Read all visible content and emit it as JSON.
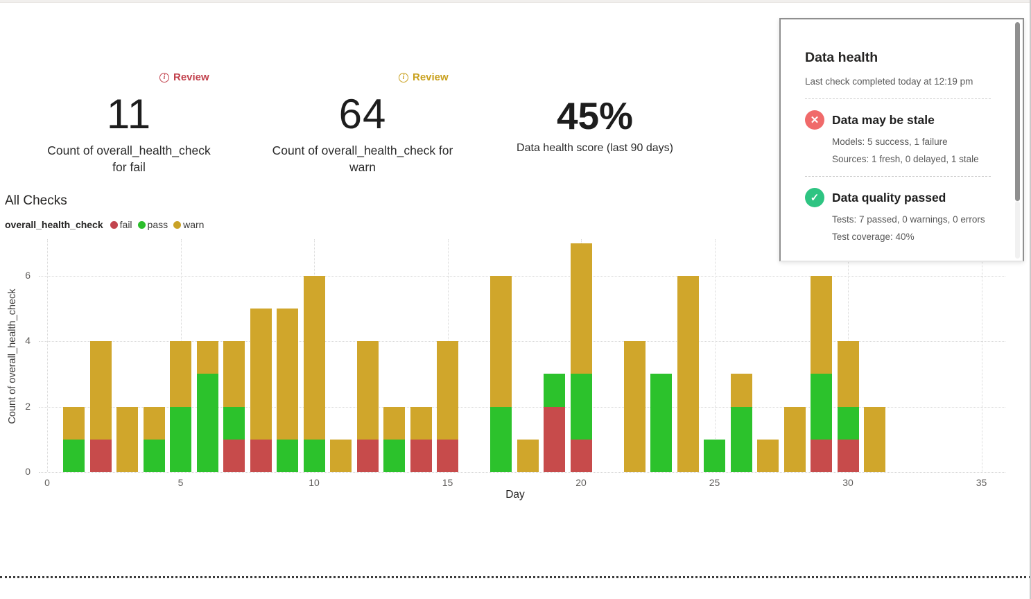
{
  "kpis": [
    {
      "value": "11",
      "label": "Count of overall_health_check for fail",
      "review_label": "Review",
      "review_color": "#c2424d"
    },
    {
      "value": "64",
      "label": "Count of overall_health_check for warn",
      "review_label": "Review",
      "review_color": "#c9a11f"
    },
    {
      "value": "45%",
      "label": "Data health score (last 90 days)"
    }
  ],
  "chart": {
    "title": "All Checks",
    "legend_title": "overall_health_check",
    "legend": [
      {
        "label": "fail",
        "color": "#c2444e"
      },
      {
        "label": "pass",
        "color": "#2bbe2b"
      },
      {
        "label": "warn",
        "color": "#c9a227"
      }
    ]
  },
  "chart_data": {
    "type": "bar",
    "stacked": true,
    "title": "All Checks",
    "xlabel": "Day",
    "ylabel": "Count of overall_health_check",
    "xlim": [
      0,
      35
    ],
    "ylim": [
      0,
      7
    ],
    "x_ticks": [
      0,
      5,
      10,
      15,
      20,
      25,
      30,
      35
    ],
    "y_ticks": [
      0,
      2,
      4,
      6
    ],
    "grid": "dotted",
    "legend_position": "top-left",
    "x": [
      1,
      2,
      3,
      4,
      5,
      6,
      7,
      8,
      9,
      10,
      11,
      12,
      13,
      14,
      15,
      17,
      18,
      19,
      20,
      22,
      23,
      24,
      25,
      26,
      27,
      28,
      29,
      30,
      31
    ],
    "series": [
      {
        "name": "fail",
        "color": "#c74b4b",
        "values": [
          0,
          1,
          0,
          0,
          0,
          0,
          1,
          1,
          0,
          0,
          0,
          1,
          0,
          1,
          1,
          0,
          0,
          2,
          1,
          0,
          0,
          0,
          0,
          0,
          0,
          0,
          1,
          1,
          0
        ]
      },
      {
        "name": "pass",
        "color": "#2cc22c",
        "values": [
          1,
          0,
          0,
          1,
          2,
          3,
          1,
          0,
          1,
          1,
          0,
          0,
          1,
          0,
          0,
          2,
          0,
          1,
          2,
          0,
          3,
          0,
          1,
          2,
          0,
          0,
          2,
          1,
          0
        ]
      },
      {
        "name": "warn",
        "color": "#d0a62b",
        "values": [
          1,
          3,
          2,
          1,
          2,
          1,
          2,
          4,
          4,
          5,
          1,
          3,
          1,
          1,
          3,
          4,
          1,
          0,
          4,
          4,
          0,
          6,
          0,
          1,
          1,
          2,
          3,
          2,
          2
        ]
      }
    ],
    "totals": {
      "fail": 11,
      "pass": 25,
      "warn": 64
    }
  },
  "panel": {
    "title": "Data health",
    "subtitle": "Last check completed today at 12:19 pm",
    "sections": [
      {
        "icon": "x-circle",
        "icon_color": "#f06a6a",
        "title": "Data may be stale",
        "lines": [
          "Models: 5 success, 1 failure",
          "Sources: 1 fresh, 0 delayed, 1 stale"
        ]
      },
      {
        "icon": "check-circle",
        "icon_color": "#2ec482",
        "title": "Data quality passed",
        "lines": [
          "Tests: 7 passed, 0 warnings, 0 errors",
          "Test coverage: 40%"
        ]
      }
    ]
  }
}
